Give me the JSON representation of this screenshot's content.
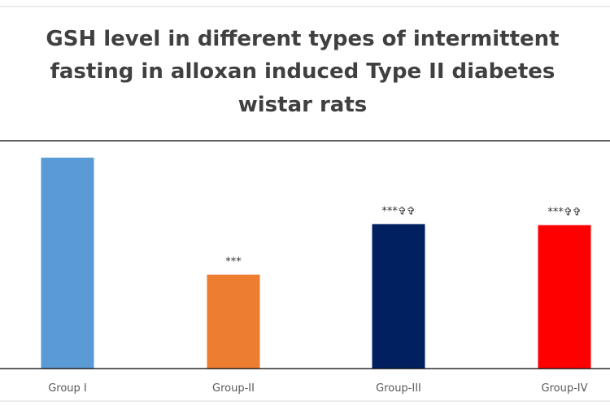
{
  "chart_data": {
    "type": "bar",
    "title_lines": [
      "GSH level in  different types of intermittent",
      "fasting in alloxan induced Type II diabetes",
      "wistar rats"
    ],
    "categories": [
      "Group I",
      "Group-II",
      "Group-III",
      "Group-IV"
    ],
    "values": [
      1.0,
      0.445,
      0.685,
      0.68
    ],
    "annotations": [
      "",
      "***",
      "***✞✞",
      "***✞✞"
    ],
    "colors": [
      "#5B9BD5",
      "#ED7D31",
      "#002060",
      "#FF0000"
    ],
    "ylim": [
      0,
      1.08
    ],
    "grid": false,
    "legend": "none"
  }
}
